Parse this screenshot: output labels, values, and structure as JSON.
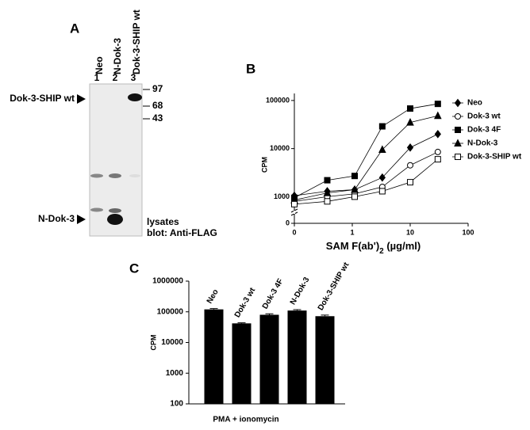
{
  "panel_a": {
    "panel_label": "A",
    "lanes": [
      {
        "name": "Neo",
        "number": "1"
      },
      {
        "name": "N-Dok-3",
        "number": "2"
      },
      {
        "name": "Dok-3-SHIP wt",
        "number": "3"
      }
    ],
    "markers": [
      "97",
      "68",
      "43"
    ],
    "arrows": [
      "Dok-3-SHIP wt",
      "N-Dok-3"
    ],
    "caption": [
      "lysates",
      "blot: Anti-FLAG"
    ]
  },
  "chart_data": [
    {
      "type": "line",
      "panel_label": "B",
      "ylabel": "CPM",
      "xlabel": "SAM F(ab')",
      "xlabel_sub": "2",
      "xlabel_unit": "(µg/ml)",
      "xscale": "log",
      "yscale": "log",
      "axis_break": true,
      "xlim": [
        0.1,
        100
      ],
      "xticks": [
        0,
        1,
        10,
        100
      ],
      "ylim": [
        280,
        140000
      ],
      "yticks": [
        0,
        1000,
        10000,
        100000
      ],
      "x": [
        0,
        0.37,
        1.1,
        3.3,
        10,
        30
      ],
      "series": [
        {
          "name": "Neo",
          "color": "#000000",
          "marker": "diamond",
          "marker_fill": "#000000",
          "values": [
            1050,
            1300,
            1400,
            2500,
            10500,
            20000
          ]
        },
        {
          "name": "Dok-3 wt",
          "color": "#000000",
          "marker": "circle",
          "marker_fill": "#ffffff",
          "values": [
            800,
            1000,
            1150,
            1600,
            4500,
            8500
          ]
        },
        {
          "name": "Dok-3 4F",
          "color": "#000000",
          "marker": "square",
          "marker_fill": "#000000",
          "values": [
            950,
            2200,
            2700,
            29000,
            68000,
            85000
          ]
        },
        {
          "name": "N-Dok-3",
          "color": "#000000",
          "marker": "triangle",
          "marker_fill": "#000000",
          "values": [
            850,
            1200,
            1400,
            9500,
            35000,
            48000
          ]
        },
        {
          "name": "Dok-3-SHIP wt",
          "color": "#000000",
          "marker": "square",
          "marker_fill": "#ffffff",
          "values": [
            700,
            800,
            1000,
            1300,
            2000,
            6000
          ]
        }
      ]
    },
    {
      "type": "bar",
      "panel_label": "C",
      "ylabel": "CPM",
      "xlabel": "PMA + ionomycin",
      "yscale": "log",
      "categories": [
        "Neo",
        "Dok-3 wt",
        "Dok-3 4F",
        "N-Dok-3",
        "Dok-3-SHIP wt"
      ],
      "values": [
        120000,
        42000,
        80000,
        110000,
        72000
      ],
      "errors": [
        8000,
        2000,
        6000,
        8000,
        6000
      ],
      "color": "#000000",
      "ylim": [
        100,
        1000000
      ],
      "yticks": [
        100,
        1000,
        10000,
        100000,
        1000000
      ]
    }
  ]
}
